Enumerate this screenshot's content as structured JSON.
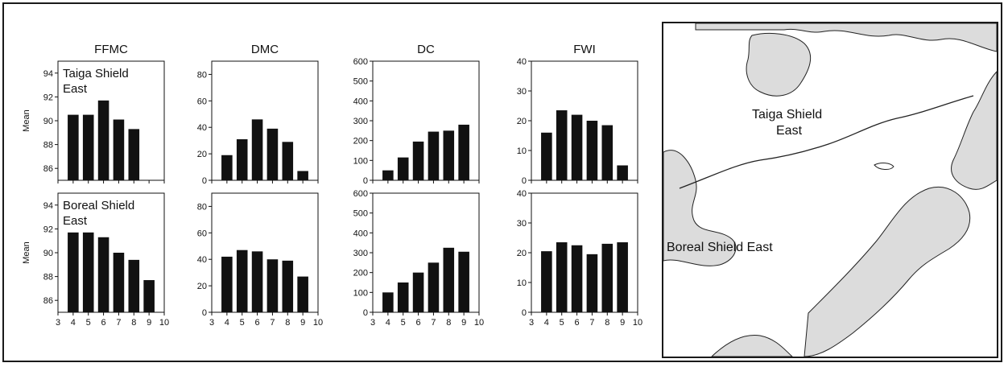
{
  "chart_data": [
    {
      "type": "bar",
      "title": "FFMC",
      "region_label": [
        "Taiga Shield",
        "East"
      ],
      "ylabel": "Mean",
      "xticks": [
        3,
        4,
        5,
        6,
        7,
        8,
        9,
        10
      ],
      "xlim": [
        3,
        10
      ],
      "ylim": [
        85,
        95
      ],
      "yticks": [
        86,
        88,
        90,
        92,
        94
      ],
      "x": [
        4,
        5,
        6,
        7,
        8
      ],
      "values": [
        90.5,
        90.5,
        91.7,
        90.1,
        89.3
      ]
    },
    {
      "type": "bar",
      "title": "DMC",
      "ylabel": "",
      "xticks": [
        3,
        4,
        5,
        6,
        7,
        8,
        9,
        10
      ],
      "xlim": [
        3,
        10
      ],
      "ylim": [
        0,
        90
      ],
      "yticks": [
        0,
        20,
        40,
        60,
        80
      ],
      "x": [
        4,
        5,
        6,
        7,
        8,
        9
      ],
      "values": [
        19,
        31,
        46,
        39,
        29,
        7
      ]
    },
    {
      "type": "bar",
      "title": "DC",
      "ylabel": "",
      "xticks": [
        3,
        4,
        5,
        6,
        7,
        8,
        9,
        10
      ],
      "xlim": [
        3,
        10
      ],
      "ylim": [
        0,
        600
      ],
      "yticks": [
        0,
        100,
        200,
        300,
        400,
        500,
        600
      ],
      "x": [
        4,
        5,
        6,
        7,
        8,
        9
      ],
      "values": [
        50,
        115,
        195,
        245,
        250,
        280
      ]
    },
    {
      "type": "bar",
      "title": "FWI",
      "ylabel": "",
      "xticks": [
        3,
        4,
        5,
        6,
        7,
        8,
        9,
        10
      ],
      "xlim": [
        3,
        10
      ],
      "ylim": [
        0,
        40
      ],
      "yticks": [
        0,
        10,
        20,
        30,
        40
      ],
      "x": [
        4,
        5,
        6,
        7,
        8,
        9
      ],
      "values": [
        16,
        23.5,
        22,
        20,
        18.5,
        5
      ]
    },
    {
      "type": "bar",
      "title": "",
      "region_label": [
        "Boreal Shield",
        "East"
      ],
      "ylabel": "Mean",
      "xticks": [
        3,
        4,
        5,
        6,
        7,
        8,
        9,
        10
      ],
      "xlim": [
        3,
        10
      ],
      "ylim": [
        85,
        95
      ],
      "yticks": [
        86,
        88,
        90,
        92,
        94
      ],
      "x": [
        4,
        5,
        6,
        7,
        8,
        9
      ],
      "values": [
        91.7,
        91.7,
        91.3,
        90.0,
        89.4,
        87.7
      ]
    },
    {
      "type": "bar",
      "title": "",
      "ylabel": "",
      "xticks": [
        3,
        4,
        5,
        6,
        7,
        8,
        9,
        10
      ],
      "xlim": [
        3,
        10
      ],
      "ylim": [
        0,
        90
      ],
      "yticks": [
        0,
        20,
        40,
        60,
        80
      ],
      "x": [
        4,
        5,
        6,
        7,
        8,
        9
      ],
      "values": [
        42,
        47,
        46,
        40,
        39,
        27
      ]
    },
    {
      "type": "bar",
      "title": "",
      "ylabel": "",
      "xticks": [
        3,
        4,
        5,
        6,
        7,
        8,
        9,
        10
      ],
      "xlim": [
        3,
        10
      ],
      "ylim": [
        0,
        600
      ],
      "yticks": [
        0,
        100,
        200,
        300,
        400,
        500,
        600
      ],
      "x": [
        4,
        5,
        6,
        7,
        8,
        9
      ],
      "values": [
        100,
        150,
        200,
        250,
        325,
        305
      ]
    },
    {
      "type": "bar",
      "title": "",
      "ylabel": "",
      "xticks": [
        3,
        4,
        5,
        6,
        7,
        8,
        9,
        10
      ],
      "xlim": [
        3,
        10
      ],
      "ylim": [
        0,
        40
      ],
      "yticks": [
        0,
        10,
        20,
        30,
        40
      ],
      "x": [
        4,
        5,
        6,
        7,
        8,
        9
      ],
      "values": [
        20.5,
        23.5,
        22.5,
        19.5,
        23,
        23.5
      ]
    }
  ],
  "map": {
    "labels": [
      "Taiga Shield",
      "East",
      "Boreal Shield East"
    ]
  }
}
